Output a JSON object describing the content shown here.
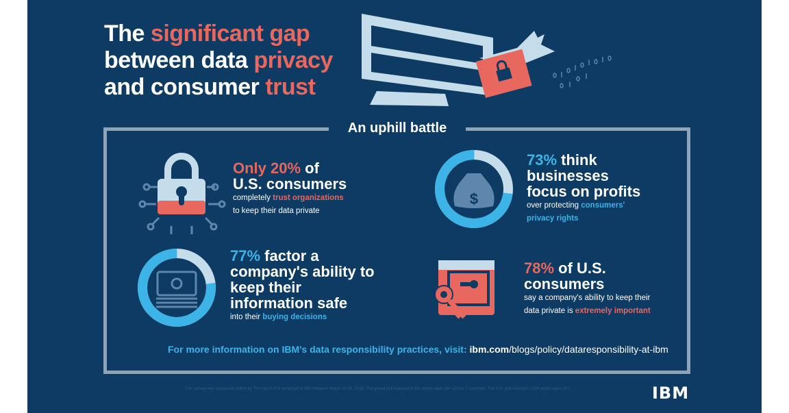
{
  "title": {
    "part1": "The ",
    "part2": "significant gap",
    "part3": "between data ",
    "part4": "privacy",
    "part5": "and consumer ",
    "part6": "trust"
  },
  "section_title": "An uphill battle",
  "stats": [
    {
      "highlight": "Only 20%",
      "rest": " of",
      "line2": "U.S. consumers",
      "small1": "completely ",
      "small_em": "trust organizations",
      "small2": "to keep their data private",
      "icon": "padlock-circuit-icon"
    },
    {
      "highlight": "73%",
      "rest": " think",
      "line2": "businesses",
      "line3": "focus on profits",
      "small1": "over protecting ",
      "small_em": "consumers'",
      "small_em2": "privacy rights",
      "icon": "money-bag-icon",
      "percent": 73
    },
    {
      "highlight": "77%",
      "rest": " factor a",
      "line2": "company's ability to",
      "line3": "keep their",
      "line4": "information safe",
      "small1": "into their ",
      "small_em": "buying decisions",
      "icon": "cash-stack-icon",
      "percent": 77
    },
    {
      "highlight": "78%",
      "rest": " of U.S.",
      "line2": "consumers",
      "small1": "say a company's ability to keep their",
      "small2": "data private is ",
      "small_em": "extremely important",
      "icon": "safe-key-icon"
    }
  ],
  "more_info": {
    "label": "For more information on IBM's data responsibility practices, visit: ",
    "url_bold": "ibm.com",
    "url_rest": "/blogs/policy/dataresponsibility-at-ibm"
  },
  "footnote": "This survey was conducted online by The Harris Poll on behalf of IBM between March 20-29, 2018. The global poll included 8,461 adults ages 18+ across 7 countries. The U.S. poll included 2,039 adults ages 18+.",
  "logo": "IBM",
  "colors": {
    "background": "#0d3b63",
    "coral": "#e8675e",
    "blue": "#3cb4e8",
    "light": "#c5dcea"
  }
}
